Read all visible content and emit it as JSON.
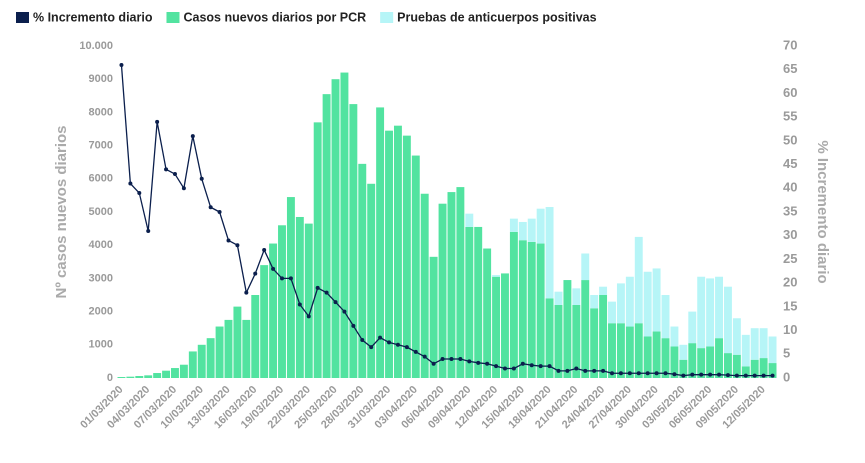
{
  "chart_data": {
    "type": "bar",
    "categories": [
      "01/03/2020",
      null,
      null,
      "04/03/2020",
      null,
      null,
      "07/03/2020",
      null,
      null,
      "10/03/2020",
      null,
      null,
      "13/03/2020",
      null,
      null,
      "16/03/2020",
      null,
      null,
      "19/03/2020",
      null,
      null,
      "22/03/2020",
      null,
      null,
      "25/03/2020",
      null,
      null,
      "28/03/2020",
      null,
      null,
      "31/03/2020",
      null,
      null,
      "03/04/2020",
      null,
      null,
      "06/04/2020",
      null,
      null,
      "09/04/2020",
      null,
      null,
      "12/04/2020",
      null,
      null,
      "15/04/2020",
      null,
      null,
      "18/04/2020",
      null,
      null,
      "21/04/2020",
      null,
      null,
      "24/04/2020",
      null,
      null,
      "27/04/2020",
      null,
      null,
      "30/04/2020",
      null,
      null,
      "03/05/2020",
      null,
      null,
      "06/05/2020",
      null,
      null,
      "09/05/2020",
      null,
      null,
      "12/05/2020",
      null
    ],
    "series": [
      {
        "name": "% Incremento diario",
        "type": "line",
        "axis": "y2",
        "color": "#0b1f4d",
        "values": [
          66,
          41,
          39,
          31,
          54,
          44,
          43,
          40,
          51,
          42,
          36,
          35,
          29,
          28,
          18,
          22,
          27,
          23,
          21,
          21,
          15.5,
          13,
          19,
          18,
          16,
          14,
          11,
          8,
          6.5,
          8.5,
          7.5,
          7,
          6.5,
          5.5,
          4.5,
          3,
          4,
          4,
          4,
          3.5,
          3.2,
          3,
          2.5,
          2,
          2,
          3,
          2.7,
          2.5,
          2.5,
          1.5,
          1.5,
          2,
          1.5,
          1.5,
          1.5,
          1,
          1,
          1,
          1,
          1,
          1,
          1,
          0.8,
          0.5,
          0.7,
          0.7,
          0.7,
          0.7,
          0.6,
          0.5,
          0.5,
          0.5,
          0.5,
          0.5
        ]
      },
      {
        "name": "Casos nuevos diarios por PCR",
        "type": "bar",
        "color": "#52e3a0",
        "values": [
          30,
          40,
          60,
          80,
          150,
          220,
          300,
          400,
          800,
          1000,
          1200,
          1550,
          1750,
          2150,
          1750,
          2500,
          3400,
          4050,
          4600,
          5450,
          4850,
          4650,
          7700,
          8550,
          9000,
          9200,
          8250,
          6450,
          5850,
          8150,
          7450,
          7600,
          7300,
          6700,
          5550,
          3650,
          5250,
          5600,
          5750,
          4550,
          4550,
          3900,
          3050,
          3150,
          4400,
          4150,
          4100,
          4050,
          2400,
          2200,
          2950,
          2200,
          2950,
          2100,
          2500,
          1650,
          1650,
          1550,
          1650,
          1250,
          1400,
          1200,
          950,
          550,
          1050,
          900,
          950,
          1200,
          750,
          700,
          350,
          550,
          600,
          450
        ]
      },
      {
        "name": "Pruebas de anticuerpos positivas",
        "type": "bar",
        "color": "#b6f5f7",
        "values": [
          0,
          0,
          0,
          0,
          0,
          0,
          0,
          0,
          0,
          0,
          0,
          0,
          0,
          0,
          0,
          0,
          0,
          0,
          0,
          0,
          0,
          0,
          0,
          0,
          0,
          0,
          0,
          0,
          0,
          0,
          0,
          0,
          0,
          0,
          0,
          0,
          0,
          0,
          0,
          400,
          0,
          0,
          50,
          0,
          400,
          550,
          700,
          1050,
          2750,
          400,
          0,
          500,
          800,
          400,
          250,
          650,
          1200,
          1500,
          2600,
          1950,
          1900,
          1300,
          600,
          450,
          950,
          2150,
          2050,
          1850,
          2000,
          1100,
          950,
          950,
          900,
          800
        ]
      }
    ],
    "ylabel": "Nº casos nuevos diarios",
    "y2label": "% Incremento diario",
    "ylim": [
      0,
      10000
    ],
    "yticks": [
      0,
      1000,
      2000,
      3000,
      4000,
      5000,
      6000,
      7000,
      8000,
      9000,
      {
        "value": 10000,
        "label": "10.000"
      }
    ],
    "y2lim": [
      0,
      70
    ],
    "y2ticks": [
      0,
      5,
      10,
      15,
      20,
      25,
      30,
      35,
      40,
      45,
      50,
      55,
      60,
      65,
      70
    ],
    "legend": "top-left"
  }
}
